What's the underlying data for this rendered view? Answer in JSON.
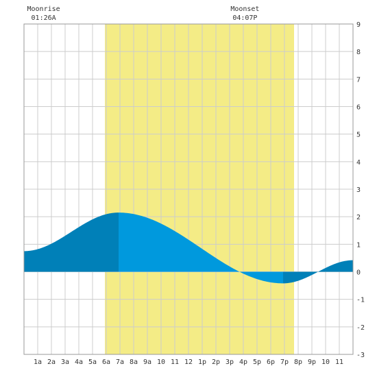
{
  "chart_data": {
    "type": "area",
    "title": "",
    "xlabel": "",
    "ylabel": "",
    "x_unit": "hour",
    "xlim": [
      0,
      24
    ],
    "ylim": [
      -3,
      9
    ],
    "y_ticks": [
      "9",
      "8",
      "7",
      "6",
      "5",
      "4",
      "3",
      "2",
      "1",
      "0",
      "-1",
      "-2",
      "-3"
    ],
    "x_tick_labels": [
      "1a",
      "2a",
      "3a",
      "4a",
      "5a",
      "6a",
      "7a",
      "8a",
      "9a",
      "10",
      "11",
      "12",
      "1p",
      "2p",
      "3p",
      "4p",
      "5p",
      "6p",
      "7p",
      "8p",
      "9p",
      "10",
      "11"
    ],
    "grid": true,
    "daylight": {
      "start": 5.9,
      "end": 19.7,
      "color": "#f4ec86"
    },
    "moon": {
      "rise_label": "Moonrise",
      "rise_time": "01:26A",
      "rise_hour": 1.43,
      "set_label": "Moonset",
      "set_time": "04:07P",
      "set_hour": 16.12
    },
    "tide": {
      "x": [
        0,
        6.9,
        18.9,
        24
      ],
      "y": [
        0.75,
        2.15,
        -0.42,
        0.42
      ],
      "extremes": [
        {
          "hour": 6.9,
          "height": 2.15,
          "kind": "high"
        },
        {
          "hour": 18.9,
          "height": -0.42,
          "kind": "low"
        }
      ]
    },
    "colors": {
      "tide_day": "#0099dd",
      "tide_night": "#0080b8",
      "grid": "#cccccc",
      "axis": "#999999",
      "text": "#333333"
    }
  }
}
